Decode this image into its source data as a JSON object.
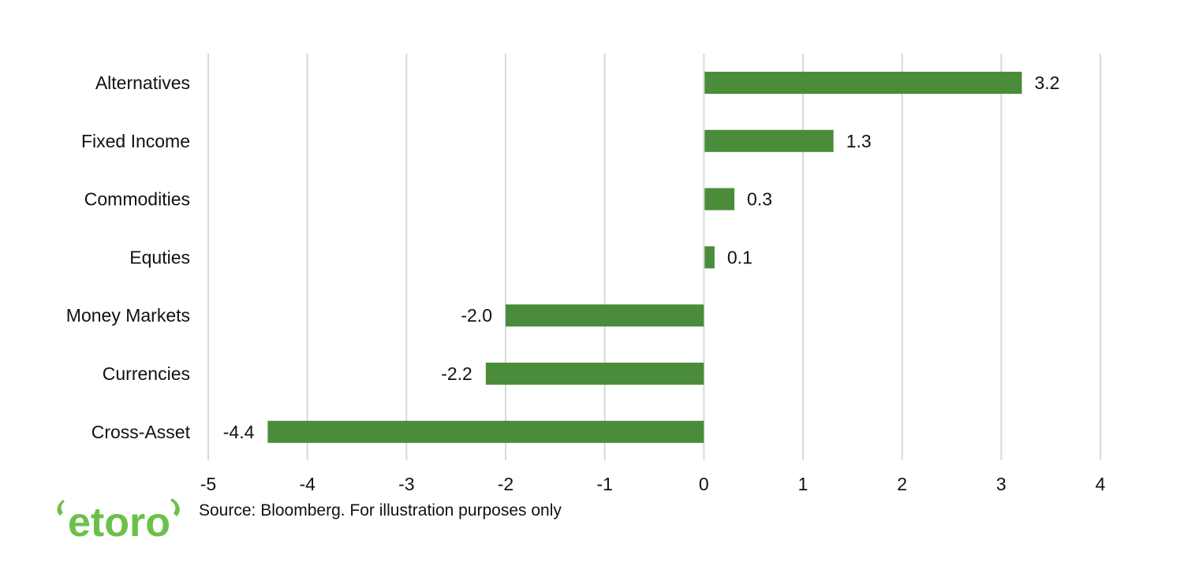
{
  "chart_data": {
    "type": "bar",
    "orientation": "horizontal",
    "categories": [
      "Alternatives",
      "Fixed Income",
      "Commodities",
      "Equties",
      "Money Markets",
      "Currencies",
      "Cross-Asset"
    ],
    "values": [
      3.2,
      1.3,
      0.3,
      0.1,
      -2.0,
      -2.2,
      -4.4
    ],
    "value_labels": [
      "3.2",
      "1.3",
      "0.3",
      "0.1",
      "-2.0",
      "-2.2",
      "-4.4"
    ],
    "xlim": [
      -5,
      4
    ],
    "x_ticks": [
      -5,
      -4,
      -3,
      -2,
      -1,
      0,
      1,
      2,
      3,
      4
    ],
    "x_tick_labels": [
      "-5",
      "-4",
      "-3",
      "-2",
      "-1",
      "0",
      "1",
      "2",
      "3",
      "4"
    ],
    "grid": "vertical",
    "bar_color": "#4a8c3a",
    "title": "",
    "xlabel": "",
    "ylabel": ""
  },
  "footer": {
    "source": "Source: Bloomberg. For illustration purposes only"
  },
  "logo": {
    "text": "etoro",
    "color": "#6cc04a"
  }
}
